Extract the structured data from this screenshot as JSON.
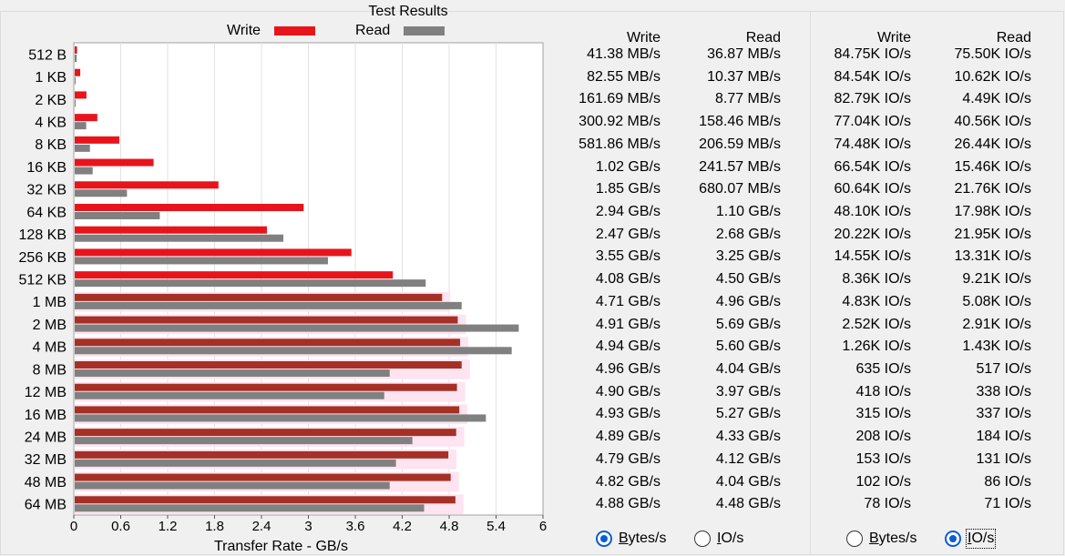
{
  "chart_data": {
    "type": "bar",
    "orientation": "horizontal",
    "title": "Test Results",
    "xlabel": "Transfer Rate - GB/s",
    "ylabel": "",
    "xlim": [
      0,
      6
    ],
    "xticks": [
      "0",
      "0.6",
      "1.2",
      "1.8",
      "2.4",
      "3",
      "3.6",
      "4.2",
      "4.8",
      "5.4",
      "6"
    ],
    "grid": true,
    "legend_placement": "top",
    "categories": [
      "512 B",
      "1 KB",
      "2 KB",
      "4 KB",
      "8 KB",
      "16 KB",
      "32 KB",
      "64 KB",
      "128 KB",
      "256 KB",
      "512 KB",
      "1 MB",
      "2 MB",
      "4 MB",
      "8 MB",
      "12 MB",
      "16 MB",
      "24 MB",
      "32 MB",
      "48 MB",
      "64 MB"
    ],
    "series": [
      {
        "name": "Write",
        "color": "#e8141c",
        "values": [
          0.04138,
          0.08255,
          0.16169,
          0.30092,
          0.58186,
          1.02,
          1.85,
          2.94,
          2.47,
          3.55,
          4.08,
          4.71,
          4.91,
          4.94,
          4.96,
          4.9,
          4.93,
          4.89,
          4.79,
          4.82,
          4.88
        ]
      },
      {
        "name": "Read",
        "color": "#808080",
        "values": [
          0.03687,
          0.01037,
          0.00877,
          0.15846,
          0.20659,
          0.24157,
          0.68007,
          1.1,
          2.68,
          3.25,
          4.5,
          4.96,
          5.69,
          5.6,
          4.04,
          3.97,
          5.27,
          4.33,
          4.12,
          4.04,
          4.48
        ]
      }
    ]
  },
  "table_bytes": {
    "headers": {
      "write": "Write",
      "read": "Read"
    },
    "rows": [
      [
        "41.38 MB/s",
        "36.87 MB/s"
      ],
      [
        "82.55 MB/s",
        "10.37 MB/s"
      ],
      [
        "161.69 MB/s",
        "8.77 MB/s"
      ],
      [
        "300.92 MB/s",
        "158.46 MB/s"
      ],
      [
        "581.86 MB/s",
        "206.59 MB/s"
      ],
      [
        "1.02 GB/s",
        "241.57 MB/s"
      ],
      [
        "1.85 GB/s",
        "680.07 MB/s"
      ],
      [
        "2.94 GB/s",
        "1.10 GB/s"
      ],
      [
        "2.47 GB/s",
        "2.68 GB/s"
      ],
      [
        "3.55 GB/s",
        "3.25 GB/s"
      ],
      [
        "4.08 GB/s",
        "4.50 GB/s"
      ],
      [
        "4.71 GB/s",
        "4.96 GB/s"
      ],
      [
        "4.91 GB/s",
        "5.69 GB/s"
      ],
      [
        "4.94 GB/s",
        "5.60 GB/s"
      ],
      [
        "4.96 GB/s",
        "4.04 GB/s"
      ],
      [
        "4.90 GB/s",
        "3.97 GB/s"
      ],
      [
        "4.93 GB/s",
        "5.27 GB/s"
      ],
      [
        "4.89 GB/s",
        "4.33 GB/s"
      ],
      [
        "4.79 GB/s",
        "4.12 GB/s"
      ],
      [
        "4.82 GB/s",
        "4.04 GB/s"
      ],
      [
        "4.88 GB/s",
        "4.48 GB/s"
      ]
    ]
  },
  "table_io": {
    "headers": {
      "write": "Write",
      "read": "Read"
    },
    "rows": [
      [
        "84.75K IO/s",
        "75.50K IO/s"
      ],
      [
        "84.54K IO/s",
        "10.62K IO/s"
      ],
      [
        "82.79K IO/s",
        "4.49K IO/s"
      ],
      [
        "77.04K IO/s",
        "40.56K IO/s"
      ],
      [
        "74.48K IO/s",
        "26.44K IO/s"
      ],
      [
        "66.54K IO/s",
        "15.46K IO/s"
      ],
      [
        "60.64K IO/s",
        "21.76K IO/s"
      ],
      [
        "48.10K IO/s",
        "17.98K IO/s"
      ],
      [
        "20.22K IO/s",
        "21.95K IO/s"
      ],
      [
        "14.55K IO/s",
        "13.31K IO/s"
      ],
      [
        "8.36K IO/s",
        "9.21K IO/s"
      ],
      [
        "4.83K IO/s",
        "5.08K IO/s"
      ],
      [
        "2.52K IO/s",
        "2.91K IO/s"
      ],
      [
        "1.26K IO/s",
        "1.43K IO/s"
      ],
      [
        "635 IO/s",
        "517 IO/s"
      ],
      [
        "418 IO/s",
        "338 IO/s"
      ],
      [
        "315 IO/s",
        "337 IO/s"
      ],
      [
        "208 IO/s",
        "184 IO/s"
      ],
      [
        "153 IO/s",
        "131 IO/s"
      ],
      [
        "102 IO/s",
        "86 IO/s"
      ],
      [
        "78 IO/s",
        "71 IO/s"
      ]
    ]
  },
  "radios_left": {
    "bytes": {
      "label_ul": "B",
      "label_rest": "ytes/s",
      "checked": true
    },
    "io": {
      "label_ul": "I",
      "label_rest": "O/s",
      "checked": false
    }
  },
  "radios_right": {
    "bytes": {
      "label_ul": "B",
      "label_rest": "ytes/s",
      "checked": false
    },
    "io": {
      "label_ul": "I",
      "label_rest": "O/s",
      "checked": true
    }
  }
}
